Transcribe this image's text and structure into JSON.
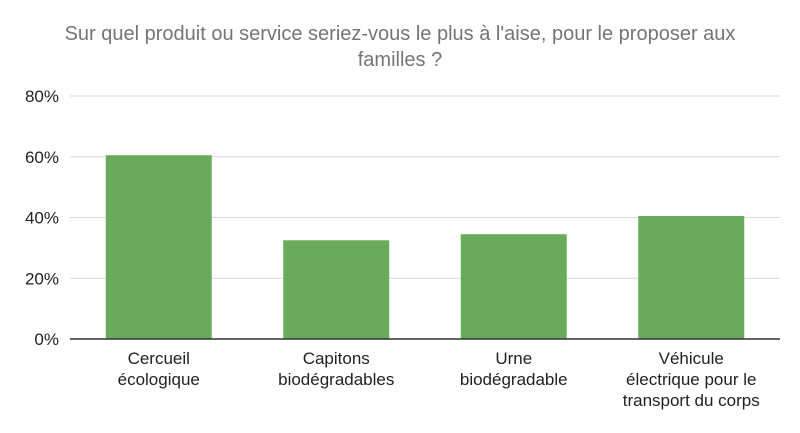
{
  "chart_data": {
    "type": "bar",
    "title": "Sur quel produit ou service seriez-vous le plus à l'aise, pour le proposer aux familles ?",
    "title_lines": [
      "Sur quel produit ou service seriez-vous le plus à l'aise, pour le proposer aux",
      "familles ?"
    ],
    "categories": [
      "Cercueil écologique",
      "Capitons biodégradables",
      "Urne biodégradable",
      "Véhicule électrique pour le transport du corps"
    ],
    "category_lines": [
      [
        "Cercueil",
        "écologique"
      ],
      [
        "Capitons",
        "biodégradables"
      ],
      [
        "Urne",
        "biodégradable"
      ],
      [
        "Véhicule",
        "électrique pour le",
        "transport du corps"
      ]
    ],
    "values": [
      0.605,
      0.325,
      0.345,
      0.405
    ],
    "ylim": [
      0,
      0.8
    ],
    "yticks": [
      0,
      0.2,
      0.4,
      0.6,
      0.8
    ],
    "ytick_labels": [
      "0%",
      "20%",
      "40%",
      "60%",
      "80%"
    ],
    "grid": true,
    "bar_color": "#6aaa5b",
    "grid_color": "#d9d9d9",
    "axis_color": "#333333",
    "title_color": "#757575",
    "text_color": "#222222"
  }
}
